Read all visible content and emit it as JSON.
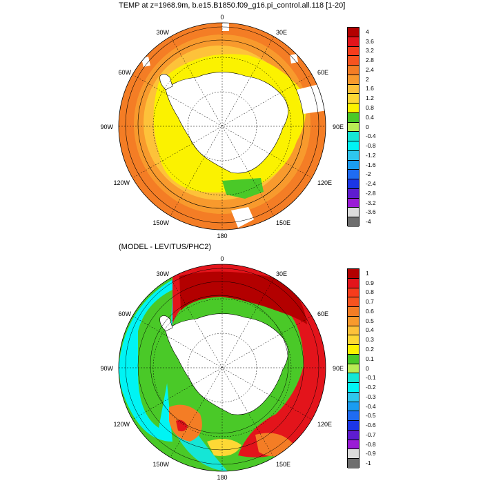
{
  "titles": {
    "top": "TEMP at z=1968.9m, b.e15.B1850.f09_g16.pi_control.all.118 [1-20]",
    "bottom": "(MODEL - LEVITUS/PHC2)"
  },
  "map_labels": {
    "top": {
      "n": "0",
      "ne": "30E",
      "nw": "30W",
      "e_upper": "60E",
      "w_upper": "60W",
      "e": "90E",
      "w": "90W",
      "e_lower": "120E",
      "w_lower": "120W",
      "se": "150E",
      "sw": "150W",
      "s": "180"
    },
    "bottom": {
      "n": "0",
      "ne": "30E",
      "nw": "30W",
      "e_upper": "60E",
      "w_upper": "60W",
      "e": "90E",
      "w": "90W",
      "e_lower": "120E",
      "w_lower": "120W",
      "se": "150E",
      "sw": "150W",
      "s": "180"
    }
  },
  "colorbars": {
    "top": {
      "labels": [
        "4",
        "3.6",
        "3.2",
        "2.8",
        "2.4",
        "2",
        "1.6",
        "1.2",
        "0.8",
        "0.4",
        "0",
        "-0.4",
        "-0.8",
        "-1.2",
        "-1.6",
        "-2",
        "-2.4",
        "-2.8",
        "-3.2",
        "-3.6",
        "-4"
      ],
      "colors": [
        "#b30000",
        "#e3141b",
        "#f73c1c",
        "#f7531f",
        "#f47d25",
        "#f89a2d",
        "#fdc23a",
        "#fdd835",
        "#fbf200",
        "#4ac928",
        "#b9ec55",
        "#15e6d6",
        "#00f4f4",
        "#2ec6ee",
        "#1a9cf0",
        "#1f6cf2",
        "#1c36e6",
        "#5e1cd0",
        "#9a1cd6",
        "#dcdcdc",
        "#6e6e6e"
      ]
    },
    "bottom": {
      "labels": [
        "1",
        "0.9",
        "0.8",
        "0.7",
        "0.6",
        "0.5",
        "0.4",
        "0.3",
        "0.2",
        "0.1",
        "0",
        "-0.1",
        "-0.2",
        "-0.3",
        "-0.4",
        "-0.5",
        "-0.6",
        "-0.7",
        "-0.8",
        "-0.9",
        "-1"
      ],
      "colors": [
        "#b30000",
        "#e3141b",
        "#f73c1c",
        "#f7531f",
        "#f47d25",
        "#f89a2d",
        "#fdc23a",
        "#fdd835",
        "#fbf200",
        "#4ac928",
        "#b9ec55",
        "#15e6d6",
        "#00f4f4",
        "#2ec6ee",
        "#1a9cf0",
        "#1f6cf2",
        "#1c36e6",
        "#5e1cd0",
        "#9a1cd6",
        "#dcdcdc",
        "#6e6e6e"
      ]
    }
  }
}
